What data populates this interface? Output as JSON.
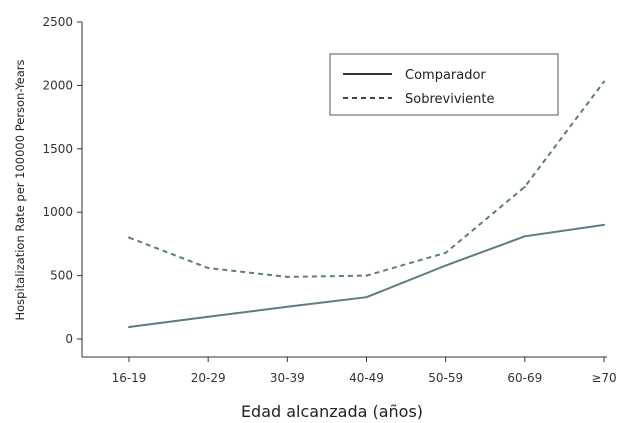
{
  "chart_data": {
    "type": "line",
    "categories": [
      "16-19",
      "20-29",
      "30-39",
      "40-49",
      "50-59",
      "60-69",
      "≥70"
    ],
    "series": [
      {
        "name": "Comparador",
        "values": [
          95,
          175,
          255,
          330,
          580,
          810,
          900
        ],
        "color": "#5e7b83",
        "style": "solid"
      },
      {
        "name": "Sobreviviente",
        "values": [
          800,
          560,
          490,
          500,
          680,
          1200,
          2030
        ],
        "color": "#5e7b83",
        "style": "dashed"
      }
    ],
    "title": "",
    "xlabel": "Edad alcanzada (años)",
    "ylabel": "Hospitalization Rate per 100000 Person-Years",
    "ylim": [
      0,
      2500
    ],
    "yticks": [
      0,
      500,
      1000,
      1500,
      2000,
      2500
    ],
    "grid": false,
    "legend_position": "top-right"
  }
}
